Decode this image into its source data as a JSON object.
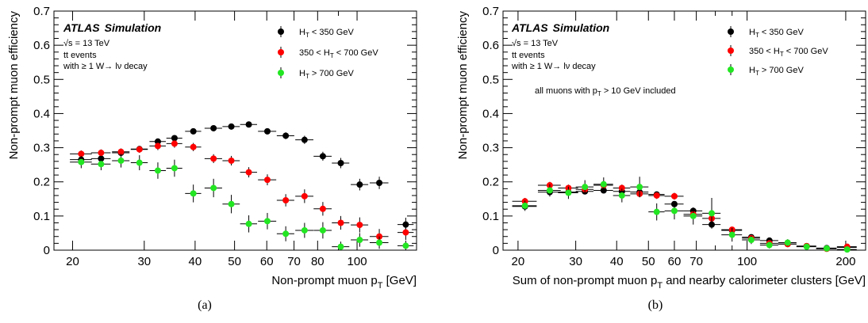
{
  "chart_data": [
    {
      "type": "scatter",
      "panel_label": "(a)",
      "experiment": "ATLAS",
      "status": "Simulation",
      "info_lines": [
        "√s = 13 TeV",
        "tt events",
        "with ≥ 1 W→ lν decay"
      ],
      "note": "",
      "xlabel_main": "Non-prompt muon p",
      "xlabel_sub": "T",
      "xlabel_tail": " [GeV]",
      "ylabel": "Non-prompt muon efficiency",
      "xscale": "log",
      "xlim": [
        18,
        140
      ],
      "ylim": [
        0,
        0.7
      ],
      "xticks": [
        20,
        30,
        40,
        50,
        60,
        70,
        80,
        100
      ],
      "yticks": [
        0,
        0.1,
        0.2,
        0.3,
        0.4,
        0.5,
        0.6,
        0.7
      ],
      "ytick_labels": [
        "0",
        "0.1",
        "0.2",
        "0.3",
        "0.4",
        "0.5",
        "0.6",
        "0.7"
      ],
      "legend_position": "top-right",
      "series": [
        {
          "name": "H_T < 350 GeV",
          "name_parts": [
            "H",
            "T",
            " < 350 GeV"
          ],
          "color": "#000000",
          "x": [
            21,
            23.5,
            26.3,
            29.2,
            32.4,
            35.6,
            39.6,
            44.4,
            49.1,
            54.2,
            60.2,
            66.8,
            74.3,
            82.4,
            91.2,
            101.5,
            113.4,
            131.7
          ],
          "xerr_lo": [
            1.3,
            1.3,
            1.3,
            1.4,
            1.5,
            1.6,
            1.8,
            2.2,
            2.4,
            2.6,
            3.1,
            3.3,
            3.8,
            4.2,
            4.5,
            5,
            6,
            6
          ],
          "xerr_hi": [
            1.3,
            1.3,
            1.3,
            1.4,
            1.5,
            1.6,
            1.8,
            2.2,
            2.4,
            2.6,
            3.1,
            3.3,
            3.8,
            4.2,
            4.5,
            5,
            6,
            6
          ],
          "y": [
            0.265,
            0.268,
            0.285,
            0.296,
            0.318,
            0.328,
            0.348,
            0.357,
            0.362,
            0.368,
            0.348,
            0.335,
            0.323,
            0.275,
            0.255,
            0.192,
            0.197,
            0.075
          ],
          "yerr": [
            0.008,
            0.008,
            0.008,
            0.008,
            0.008,
            0.008,
            0.008,
            0.008,
            0.008,
            0.008,
            0.009,
            0.01,
            0.012,
            0.013,
            0.015,
            0.017,
            0.018,
            0.02
          ]
        },
        {
          "name": "350 < H_T < 700 GeV",
          "name_parts": [
            "350 < H",
            "T",
            " < 700 GeV"
          ],
          "color": "#ff0000",
          "x": [
            21,
            23.5,
            26.3,
            29.2,
            32.4,
            35.6,
            39.6,
            44.4,
            49.1,
            54.2,
            60.2,
            66.8,
            74.3,
            82.4,
            91.2,
            101.5,
            113.4,
            131.7
          ],
          "xerr_lo": [
            1.3,
            1.3,
            1.3,
            1.4,
            1.5,
            1.6,
            1.8,
            2.2,
            2.4,
            2.6,
            3.1,
            3.3,
            3.8,
            4.2,
            4.5,
            5,
            6,
            6
          ],
          "xerr_hi": [
            1.3,
            1.3,
            1.3,
            1.4,
            1.5,
            1.6,
            1.8,
            2.2,
            2.4,
            2.6,
            3.1,
            3.3,
            3.8,
            4.2,
            4.5,
            5,
            6,
            6
          ],
          "y": [
            0.282,
            0.285,
            0.288,
            0.295,
            0.305,
            0.312,
            0.302,
            0.268,
            0.262,
            0.228,
            0.206,
            0.146,
            0.158,
            0.121,
            0.08,
            0.074,
            0.04,
            0.052
          ],
          "yerr": [
            0.01,
            0.01,
            0.01,
            0.01,
            0.012,
            0.012,
            0.012,
            0.013,
            0.014,
            0.015,
            0.016,
            0.018,
            0.02,
            0.02,
            0.02,
            0.022,
            0.022,
            0.022
          ]
        },
        {
          "name": "H_T > 700 GeV",
          "name_parts": [
            "H",
            "T",
            " > 700 GeV"
          ],
          "color": "#22e622",
          "x": [
            21,
            23.5,
            26.3,
            29.2,
            32.4,
            35.6,
            39.6,
            44.4,
            49.1,
            54.2,
            60.2,
            66.8,
            74.3,
            82.4,
            91.2,
            101.5,
            113.4,
            131.7
          ],
          "xerr_lo": [
            1.3,
            1.3,
            1.3,
            1.4,
            1.5,
            1.6,
            1.8,
            2.2,
            2.4,
            2.6,
            3.1,
            3.3,
            3.8,
            4.2,
            4.5,
            5,
            6,
            6
          ],
          "xerr_hi": [
            1.3,
            1.3,
            1.3,
            1.4,
            1.5,
            1.6,
            1.8,
            2.2,
            2.4,
            2.6,
            3.1,
            3.3,
            3.8,
            4.2,
            4.5,
            5,
            6,
            6
          ],
          "y": [
            0.258,
            0.252,
            0.262,
            0.256,
            0.233,
            0.24,
            0.166,
            0.182,
            0.135,
            0.077,
            0.085,
            0.048,
            0.058,
            0.058,
            0.01,
            0.03,
            0.022,
            0.013
          ],
          "yerr": [
            0.018,
            0.018,
            0.02,
            0.022,
            0.024,
            0.025,
            0.026,
            0.027,
            0.027,
            0.025,
            0.024,
            0.022,
            0.022,
            0.024,
            0.015,
            0.02,
            0.018,
            0.015
          ]
        }
      ]
    },
    {
      "type": "scatter",
      "panel_label": "(b)",
      "experiment": "ATLAS",
      "status": "Simulation",
      "info_lines": [
        "√s = 13 TeV",
        "tt events",
        "with ≥ 1 W→ lν decay"
      ],
      "note_main": "all muons with p",
      "note_sub": "T",
      "note_tail": " > 10 GeV included",
      "xlabel_main": "Sum of non-prompt muon p",
      "xlabel_sub": "T",
      "xlabel_tail": " and nearby calorimeter clusters [GeV]",
      "ylabel": "Non-prompt muon efficiency",
      "xscale": "log",
      "xlim": [
        18,
        230
      ],
      "ylim": [
        0,
        0.7
      ],
      "xticks": [
        20,
        30,
        40,
        50,
        60,
        70,
        100,
        200
      ],
      "yticks": [
        0,
        0.1,
        0.2,
        0.3,
        0.4,
        0.5,
        0.6,
        0.7
      ],
      "ytick_labels": [
        "0",
        "0.1",
        "0.2",
        "0.3",
        "0.4",
        "0.5",
        "0.6",
        "0.7"
      ],
      "legend_position": "top-right",
      "series": [
        {
          "name": "H_T < 350 GeV",
          "name_parts": [
            "H",
            "T",
            " < 350 GeV"
          ],
          "color": "#000000",
          "x": [
            21,
            25,
            28.5,
            32,
            36.5,
            41.5,
            47,
            53,
            60,
            68.5,
            78,
            90,
            103,
            117,
            133,
            152,
            175,
            202
          ],
          "xerr_lo": [
            1.8,
            2,
            2,
            2,
            2.5,
            2.5,
            3,
            3,
            4,
            4.5,
            5,
            6.5,
            6.5,
            7.5,
            8.5,
            10.5,
            12.5,
            14
          ],
          "xerr_hi": [
            1.8,
            2,
            2,
            2,
            2.5,
            2.5,
            3,
            3,
            4,
            4.5,
            5,
            6.5,
            6.5,
            7.5,
            8.5,
            10.5,
            12.5,
            14
          ],
          "y": [
            0.128,
            0.17,
            0.17,
            0.172,
            0.175,
            0.172,
            0.17,
            0.163,
            0.135,
            0.115,
            0.075,
            0.058,
            0.038,
            0.028,
            0.018,
            0.012,
            0.006,
            0.008
          ],
          "yerr": [
            0.008,
            0.008,
            0.008,
            0.008,
            0.008,
            0.008,
            0.008,
            0.008,
            0.008,
            0.008,
            0.008,
            0.007,
            0.006,
            0.005,
            0.005,
            0.004,
            0.004,
            0.004
          ]
        },
        {
          "name": "350 < H_T < 700 GeV",
          "name_parts": [
            "350 < H",
            "T",
            " < 700 GeV"
          ],
          "color": "#ff0000",
          "x": [
            21,
            25,
            28.5,
            32,
            36.5,
            41.5,
            47,
            53,
            60,
            68.5,
            78,
            90,
            103,
            117,
            133,
            152,
            175,
            202
          ],
          "xerr_lo": [
            1.8,
            2,
            2,
            2,
            2.5,
            2.5,
            3,
            3,
            4,
            4.5,
            5,
            6.5,
            6.5,
            7.5,
            8.5,
            10.5,
            12.5,
            14
          ],
          "xerr_hi": [
            1.8,
            2,
            2,
            2,
            2.5,
            2.5,
            3,
            3,
            4,
            4.5,
            5,
            6.5,
            6.5,
            7.5,
            8.5,
            10.5,
            12.5,
            14
          ],
          "y": [
            0.143,
            0.19,
            0.182,
            0.178,
            0.19,
            0.182,
            0.165,
            0.16,
            0.158,
            0.105,
            0.093,
            0.06,
            0.035,
            0.02,
            0.018,
            0.012,
            0.004,
            0.01
          ],
          "yerr": [
            0.01,
            0.01,
            0.01,
            0.01,
            0.01,
            0.01,
            0.01,
            0.01,
            0.01,
            0.01,
            0.01,
            0.008,
            0.007,
            0.006,
            0.006,
            0.005,
            0.004,
            0.004
          ]
        },
        {
          "name": "H_T > 700 GeV",
          "name_parts": [
            "H",
            "T",
            " > 700 GeV"
          ],
          "color": "#22e622",
          "x": [
            21,
            25,
            28.5,
            32,
            36.5,
            41.5,
            47,
            53,
            60,
            68.5,
            78,
            90,
            103,
            117,
            133,
            152,
            175,
            202
          ],
          "xerr_lo": [
            1.8,
            2,
            2,
            2,
            2.5,
            2.5,
            3,
            3,
            4,
            4.5,
            5,
            6.5,
            6.5,
            7.5,
            8.5,
            10.5,
            12.5,
            14
          ],
          "xerr_hi": [
            1.8,
            2,
            2,
            2,
            2.5,
            2.5,
            3,
            3,
            4,
            4.5,
            5,
            6.5,
            6.5,
            7.5,
            8.5,
            10.5,
            12.5,
            14
          ],
          "y": [
            0.13,
            0.175,
            0.168,
            0.185,
            0.193,
            0.16,
            0.185,
            0.112,
            0.115,
            0.1,
            0.108,
            0.045,
            0.03,
            0.015,
            0.022,
            0.01,
            0.005,
            0.002
          ],
          "yerr": [
            0.015,
            0.018,
            0.018,
            0.02,
            0.02,
            0.02,
            0.03,
            0.025,
            0.025,
            0.025,
            0.045,
            0.02,
            0.012,
            0.01,
            0.01,
            0.008,
            0.006,
            0.005
          ]
        }
      ]
    }
  ]
}
